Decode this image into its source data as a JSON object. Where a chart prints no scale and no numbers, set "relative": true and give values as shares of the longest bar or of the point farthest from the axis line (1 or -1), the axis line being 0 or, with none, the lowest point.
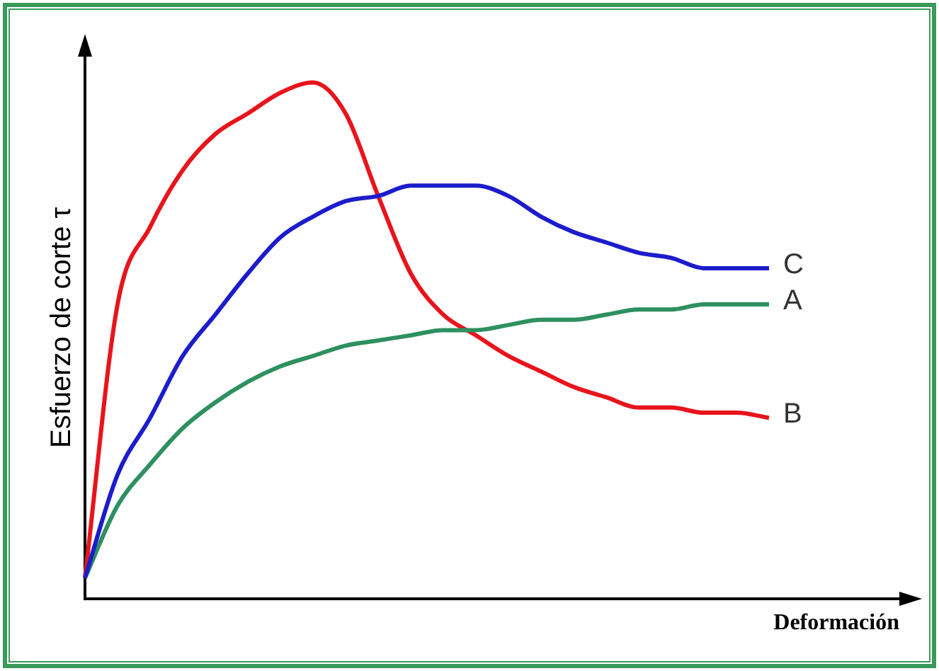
{
  "chart_data": {
    "type": "line",
    "relative": true,
    "ylabel": "Esfuerzo de corte τ",
    "xlabel": "Deformación",
    "tick_labels": false,
    "categories": [
      null,
      null,
      null,
      null,
      null,
      null,
      null,
      null,
      null,
      null,
      null,
      null,
      null,
      null,
      null,
      null,
      null,
      null,
      null,
      null,
      null,
      null,
      null,
      null,
      null,
      null
    ],
    "series": [
      {
        "name": "C",
        "color": "#1c1ccc",
        "values": [
          0.04,
          0.24,
          0.35,
          0.47,
          0.55,
          0.63,
          0.7,
          0.74,
          0.77,
          0.78,
          0.8,
          0.8,
          0.8,
          0.78,
          0.74,
          0.71,
          0.69,
          0.67,
          0.66,
          0.64,
          0.64,
          0.64,
          null,
          null,
          null,
          null
        ]
      },
      {
        "name": "A",
        "color": "#2e9060",
        "values": [
          0.04,
          0.18,
          0.26,
          0.33,
          0.38,
          0.42,
          0.45,
          0.47,
          0.49,
          0.5,
          0.51,
          0.52,
          0.52,
          0.53,
          0.54,
          0.54,
          0.55,
          0.56,
          0.56,
          0.57,
          0.57,
          0.57,
          null,
          null,
          null,
          null
        ]
      },
      {
        "name": "B",
        "color": "#e8141c",
        "values": [
          0.04,
          0.57,
          0.72,
          0.83,
          0.9,
          0.94,
          0.98,
          1.0,
          0.94,
          0.78,
          0.63,
          0.55,
          0.51,
          0.47,
          0.44,
          0.41,
          0.39,
          0.37,
          0.37,
          0.36,
          0.36,
          0.35,
          null,
          null,
          null,
          null
        ]
      }
    ]
  }
}
